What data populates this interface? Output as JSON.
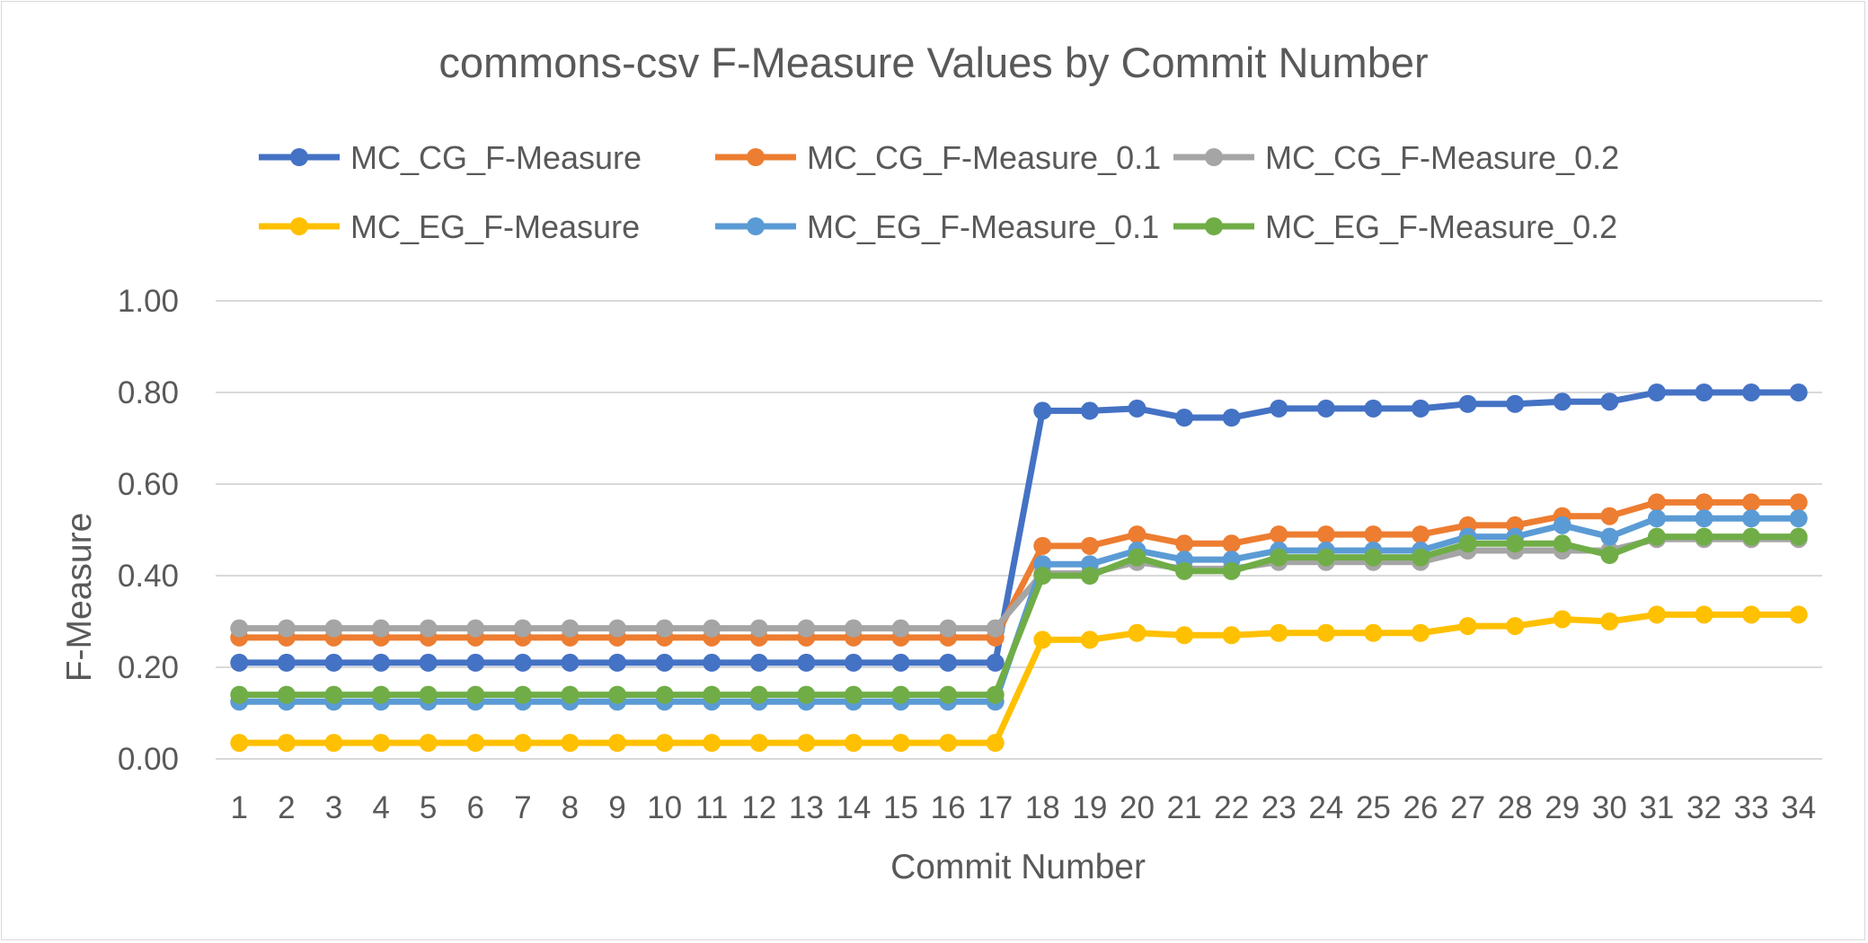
{
  "chart_data": {
    "type": "line",
    "title": "commons-csv F-Measure Values by Commit Number",
    "xlabel": "Commit Number",
    "ylabel": "F-Measure",
    "ylim": [
      0,
      1
    ],
    "y_ticks": [
      "0.00",
      "0.20",
      "0.40",
      "0.60",
      "0.80",
      "1.00"
    ],
    "grid": true,
    "legend_position": "top",
    "categories": [
      "1",
      "2",
      "3",
      "4",
      "5",
      "6",
      "7",
      "8",
      "9",
      "10",
      "11",
      "12",
      "13",
      "14",
      "15",
      "16",
      "17",
      "18",
      "19",
      "20",
      "21",
      "22",
      "23",
      "24",
      "25",
      "26",
      "27",
      "28",
      "29",
      "30",
      "31",
      "32",
      "33",
      "34"
    ],
    "series": [
      {
        "name": "MC_CG_F-Measure",
        "color": "#4472C4",
        "values": [
          0.21,
          0.21,
          0.21,
          0.21,
          0.21,
          0.21,
          0.21,
          0.21,
          0.21,
          0.21,
          0.21,
          0.21,
          0.21,
          0.21,
          0.21,
          0.21,
          0.21,
          0.76,
          0.76,
          0.765,
          0.745,
          0.745,
          0.765,
          0.765,
          0.765,
          0.765,
          0.775,
          0.775,
          0.78,
          0.78,
          0.8,
          0.8,
          0.8,
          0.8
        ]
      },
      {
        "name": "MC_CG_F-Measure_0.1",
        "color": "#ED7D31",
        "values": [
          0.265,
          0.265,
          0.265,
          0.265,
          0.265,
          0.265,
          0.265,
          0.265,
          0.265,
          0.265,
          0.265,
          0.265,
          0.265,
          0.265,
          0.265,
          0.265,
          0.265,
          0.465,
          0.465,
          0.49,
          0.47,
          0.47,
          0.49,
          0.49,
          0.49,
          0.49,
          0.51,
          0.51,
          0.53,
          0.53,
          0.56,
          0.56,
          0.56,
          0.56
        ]
      },
      {
        "name": "MC_CG_F-Measure_0.2",
        "color": "#A5A5A5",
        "values": [
          0.285,
          0.285,
          0.285,
          0.285,
          0.285,
          0.285,
          0.285,
          0.285,
          0.285,
          0.285,
          0.285,
          0.285,
          0.285,
          0.285,
          0.285,
          0.285,
          0.285,
          0.405,
          0.405,
          0.43,
          0.415,
          0.415,
          0.43,
          0.43,
          0.43,
          0.43,
          0.455,
          0.455,
          0.455,
          0.455,
          0.48,
          0.48,
          0.48,
          0.48
        ]
      },
      {
        "name": "MC_EG_F-Measure",
        "color": "#FFC000",
        "values": [
          0.035,
          0.035,
          0.035,
          0.035,
          0.035,
          0.035,
          0.035,
          0.035,
          0.035,
          0.035,
          0.035,
          0.035,
          0.035,
          0.035,
          0.035,
          0.035,
          0.035,
          0.26,
          0.26,
          0.275,
          0.27,
          0.27,
          0.275,
          0.275,
          0.275,
          0.275,
          0.29,
          0.29,
          0.305,
          0.3,
          0.315,
          0.315,
          0.315,
          0.315
        ]
      },
      {
        "name": "MC_EG_F-Measure_0.1",
        "color": "#5B9BD5",
        "values": [
          0.125,
          0.125,
          0.125,
          0.125,
          0.125,
          0.125,
          0.125,
          0.125,
          0.125,
          0.125,
          0.125,
          0.125,
          0.125,
          0.125,
          0.125,
          0.125,
          0.125,
          0.425,
          0.425,
          0.455,
          0.435,
          0.435,
          0.455,
          0.455,
          0.455,
          0.455,
          0.485,
          0.485,
          0.51,
          0.485,
          0.525,
          0.525,
          0.525,
          0.525
        ]
      },
      {
        "name": "MC_EG_F-Measure_0.2",
        "color": "#70AD47",
        "values": [
          0.14,
          0.14,
          0.14,
          0.14,
          0.14,
          0.14,
          0.14,
          0.14,
          0.14,
          0.14,
          0.14,
          0.14,
          0.14,
          0.14,
          0.14,
          0.14,
          0.14,
          0.4,
          0.4,
          0.44,
          0.41,
          0.41,
          0.44,
          0.44,
          0.44,
          0.44,
          0.47,
          0.47,
          0.47,
          0.445,
          0.485,
          0.485,
          0.485,
          0.485
        ]
      }
    ]
  }
}
